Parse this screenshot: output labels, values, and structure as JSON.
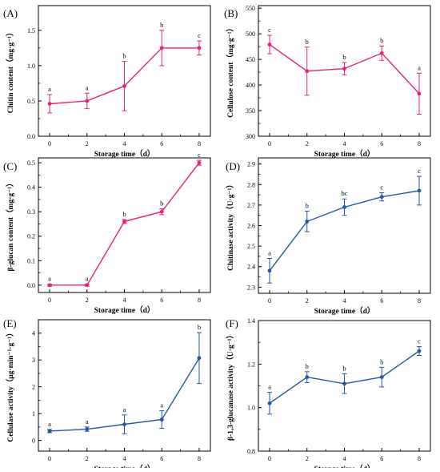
{
  "chart_data": [
    {
      "panel": "(A)",
      "type": "line",
      "color": "#e8217a",
      "xlabel": "Storage time（d）",
      "ylabel": "Chitin content（mg·g⁻¹）",
      "x": [
        0,
        2,
        4,
        6,
        8
      ],
      "y": [
        0.46,
        0.5,
        0.71,
        1.25,
        1.25
      ],
      "err": [
        0.13,
        0.11,
        0.35,
        0.25,
        0.1
      ],
      "letters": [
        "a",
        "a",
        "b",
        "b",
        "c"
      ],
      "xticks": [
        "0",
        "2",
        "4",
        "6",
        "8"
      ],
      "xlim": [
        -0.6,
        8.6
      ],
      "yticks": [
        "0.0",
        "0.5",
        "1.0",
        "1.5"
      ],
      "ytick_values": [
        0,
        0.5,
        1.0,
        1.5
      ],
      "ylim": [
        0,
        1.85
      ]
    },
    {
      "panel": "(B)",
      "type": "line",
      "color": "#e8217a",
      "xlabel": "Storage time（d）",
      "ylabel": "Cellulose content（mg·g⁻¹）",
      "x": [
        0,
        2,
        4,
        6,
        8
      ],
      "y": [
        479,
        427,
        432,
        462,
        383
      ],
      "err": [
        18,
        47,
        12,
        14,
        40
      ],
      "letters": [
        "c",
        "b",
        "b",
        "b",
        "a"
      ],
      "xticks": [
        "0",
        "2",
        "4",
        "6",
        "8"
      ],
      "xlim": [
        -0.6,
        8.6
      ],
      "yticks": [
        "300",
        "350",
        "400",
        "450",
        "500",
        "550"
      ],
      "ytick_values": [
        300,
        350,
        400,
        450,
        500,
        550
      ],
      "ylim": [
        300,
        555
      ]
    },
    {
      "panel": "(C)",
      "type": "line",
      "color": "#e8217a",
      "xlabel": "Storage time（d）",
      "ylabel": "β-glucan content（mg·g⁻¹）",
      "x": [
        0,
        2,
        4,
        6,
        8
      ],
      "y": [
        0.0,
        0.0,
        0.26,
        0.3,
        0.5
      ],
      "err": [
        0.004,
        0.004,
        0.008,
        0.012,
        0.01
      ],
      "letters": [
        "a",
        "a",
        "b",
        "b",
        "c"
      ],
      "xticks": [
        "0",
        "2",
        "4",
        "6",
        "8"
      ],
      "xlim": [
        -0.6,
        8.6
      ],
      "yticks": [
        "0.0",
        "0.1",
        "0.2",
        "0.3",
        "0.4",
        "0.5"
      ],
      "ytick_values": [
        0,
        0.1,
        0.2,
        0.3,
        0.4,
        0.5
      ],
      "ylim": [
        -0.03,
        0.52
      ]
    },
    {
      "panel": "(D)",
      "type": "line",
      "color": "#2456a4",
      "xlabel": "Storage time（d）",
      "ylabel": "Chitinase activity（U·g⁻¹）",
      "x": [
        0,
        2,
        4,
        6,
        8
      ],
      "y": [
        2.38,
        2.62,
        2.69,
        2.74,
        2.77
      ],
      "err": [
        0.06,
        0.05,
        0.04,
        0.02,
        0.07
      ],
      "letters": [
        "a",
        "b",
        "bc",
        "c",
        "c"
      ],
      "xticks": [
        "0",
        "2",
        "4",
        "6",
        "8"
      ],
      "xlim": [
        -0.6,
        8.6
      ],
      "yticks": [
        "2.3",
        "2.4",
        "2.5",
        "2.6",
        "2.7",
        "2.8",
        "2.9"
      ],
      "ytick_values": [
        2.3,
        2.4,
        2.5,
        2.6,
        2.7,
        2.8,
        2.9
      ],
      "ylim": [
        2.27,
        2.93
      ]
    },
    {
      "panel": "(E)",
      "type": "line",
      "color": "#2456a4",
      "xlabel": "Storage time（d）",
      "ylabel": "Cellulase activity（μg·min⁻¹·g⁻¹）",
      "x": [
        0,
        2,
        4,
        6,
        8
      ],
      "y": [
        0.35,
        0.42,
        0.6,
        0.78,
        3.07
      ],
      "err": [
        0.06,
        0.08,
        0.35,
        0.33,
        0.95
      ],
      "letters": [
        "a",
        "a",
        "a",
        "a",
        "b"
      ],
      "xticks": [
        "0",
        "2",
        "4",
        "6",
        "8"
      ],
      "xlim": [
        -0.6,
        8.6
      ],
      "yticks": [
        "0",
        "1",
        "2",
        "3",
        "4"
      ],
      "ytick_values": [
        0,
        1,
        2,
        3,
        4
      ],
      "ylim": [
        -0.4,
        4.5
      ]
    },
    {
      "panel": "(F)",
      "type": "line",
      "color": "#2456a4",
      "xlabel": "Storage time（d）",
      "ylabel": "β-1,3-glucanase activity（U·g⁻¹）",
      "x": [
        0,
        2,
        4,
        6,
        8
      ],
      "y": [
        1.02,
        1.14,
        1.11,
        1.14,
        1.26
      ],
      "err": [
        0.05,
        0.025,
        0.045,
        0.045,
        0.02
      ],
      "letters": [
        "a",
        "b",
        "b",
        "b",
        "c"
      ],
      "xticks": [
        "0",
        "2",
        "4",
        "6",
        "8"
      ],
      "xlim": [
        -0.6,
        8.6
      ],
      "yticks": [
        "0.8",
        "1.0",
        "1.2",
        "1.4"
      ],
      "ytick_values": [
        0.8,
        1.0,
        1.2,
        1.4
      ],
      "ylim": [
        0.8,
        1.4
      ]
    }
  ]
}
